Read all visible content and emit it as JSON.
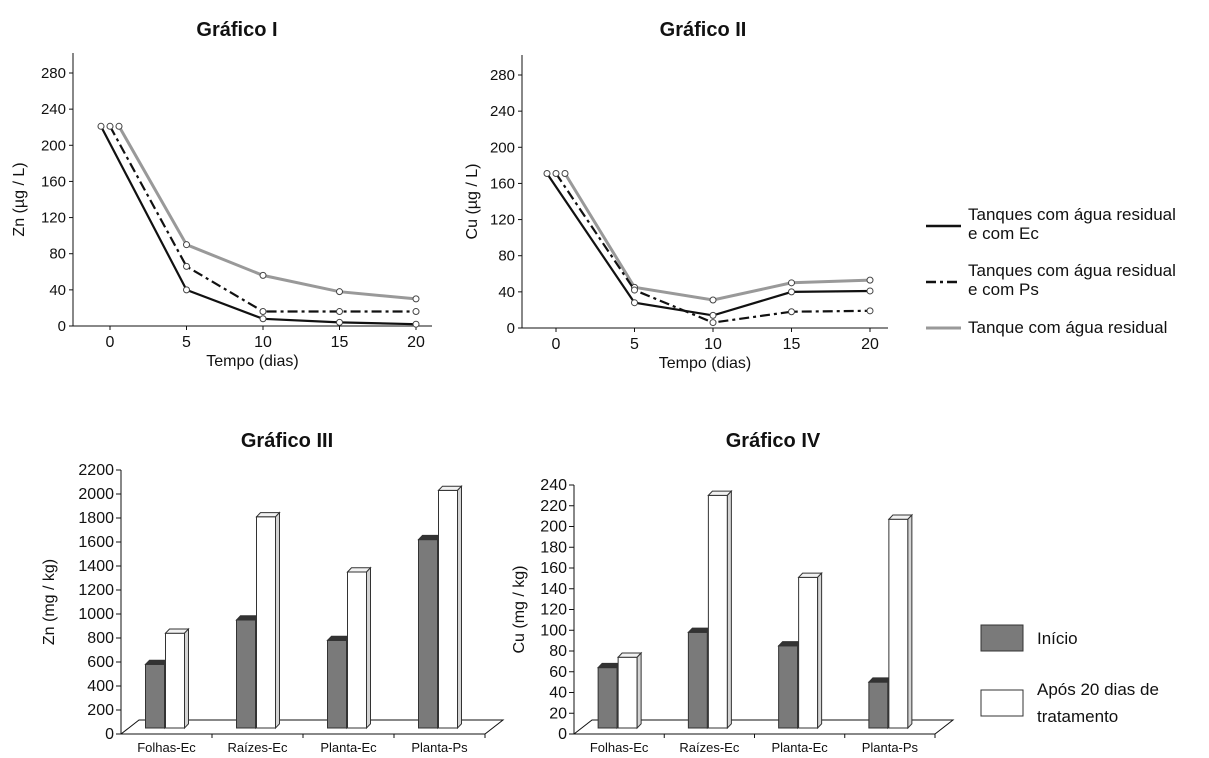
{
  "legend_lines": {
    "entries": [
      {
        "label_lines": [
          "Tanques com água residual",
          "e com Ec"
        ],
        "style": "solid",
        "color": "#111111"
      },
      {
        "label_lines": [
          "Tanques com água residual",
          "e com Ps"
        ],
        "style": "dashdot",
        "color": "#111111"
      },
      {
        "label_lines": [
          "Tanque com água residual"
        ],
        "style": "solid",
        "color": "#999999"
      }
    ]
  },
  "legend_bars": {
    "entries": [
      {
        "label_lines": [
          "Início"
        ],
        "fill": "#7a7a7a"
      },
      {
        "label_lines": [
          "Após 20 dias de",
          "tratamento"
        ],
        "fill": "#ffffff"
      }
    ]
  },
  "chart_data": [
    {
      "type": "line",
      "title": "Gráfico I",
      "xlabel": "Tempo (dias)",
      "ylabel": "Zn (µg / L)",
      "x": [
        0,
        5,
        10,
        15,
        20
      ],
      "xticks": [
        0,
        5,
        10,
        15,
        20
      ],
      "yticks": [
        0,
        40,
        80,
        120,
        160,
        200,
        240,
        280
      ],
      "ylim": [
        0,
        280
      ],
      "series": [
        {
          "name": "Tanques com água residual e com Ec",
          "values": [
            221,
            40,
            8,
            4,
            2
          ],
          "style": "solid",
          "color": "#111111"
        },
        {
          "name": "Tanques com água residual e com Ps",
          "values": [
            221,
            66,
            16,
            16,
            16
          ],
          "style": "dashdot",
          "color": "#111111"
        },
        {
          "name": "Tanque com água residual",
          "values": [
            221,
            90,
            56,
            38,
            30
          ],
          "style": "solid",
          "color": "#999999"
        }
      ]
    },
    {
      "type": "line",
      "title": "Gráfico II",
      "xlabel": "Tempo (dias)",
      "ylabel": "Cu (µg / L)",
      "x": [
        0,
        5,
        10,
        15,
        20
      ],
      "xticks": [
        0,
        5,
        10,
        15,
        20
      ],
      "yticks": [
        0,
        40,
        80,
        120,
        160,
        200,
        240,
        280
      ],
      "ylim": [
        0,
        280
      ],
      "series": [
        {
          "name": "Tanques com água residual e com Ec",
          "values": [
            171,
            28,
            14,
            40,
            41
          ],
          "style": "solid",
          "color": "#111111"
        },
        {
          "name": "Tanques com água residual e com Ps",
          "values": [
            171,
            42,
            6,
            18,
            19
          ],
          "style": "dashdot",
          "color": "#111111"
        },
        {
          "name": "Tanque com água residual",
          "values": [
            171,
            45,
            31,
            50,
            53
          ],
          "style": "solid",
          "color": "#999999"
        }
      ]
    },
    {
      "type": "bar",
      "title": "Gráfico III",
      "ylabel": "Zn (mg / kg)",
      "categories": [
        "Folhas-Ec",
        "Raízes-Ec",
        "Planta-Ec",
        "Planta-Ps"
      ],
      "yticks": [
        0,
        200,
        400,
        600,
        800,
        1000,
        1200,
        1400,
        1600,
        1800,
        2000,
        2200
      ],
      "ylim": [
        0,
        2200
      ],
      "series": [
        {
          "name": "Início",
          "values": [
            580,
            950,
            780,
            1620
          ],
          "fill": "#7a7a7a"
        },
        {
          "name": "Após 20 dias de tratamento",
          "values": [
            840,
            1810,
            1350,
            2030
          ],
          "fill": "#ffffff"
        }
      ]
    },
    {
      "type": "bar",
      "title": "Gráfico IV",
      "ylabel": "Cu (mg / kg)",
      "categories": [
        "Folhas-Ec",
        "Raízes-Ec",
        "Planta-Ec",
        "Planta-Ps"
      ],
      "yticks": [
        0,
        20,
        40,
        60,
        80,
        100,
        120,
        140,
        160,
        180,
        200,
        220,
        240
      ],
      "ylim": [
        0,
        240
      ],
      "series": [
        {
          "name": "Início",
          "values": [
            64,
            98,
            85,
            50
          ],
          "fill": "#7a7a7a"
        },
        {
          "name": "Após 20 dias de tratamento",
          "values": [
            74,
            230,
            151,
            207
          ],
          "fill": "#ffffff"
        }
      ]
    }
  ]
}
